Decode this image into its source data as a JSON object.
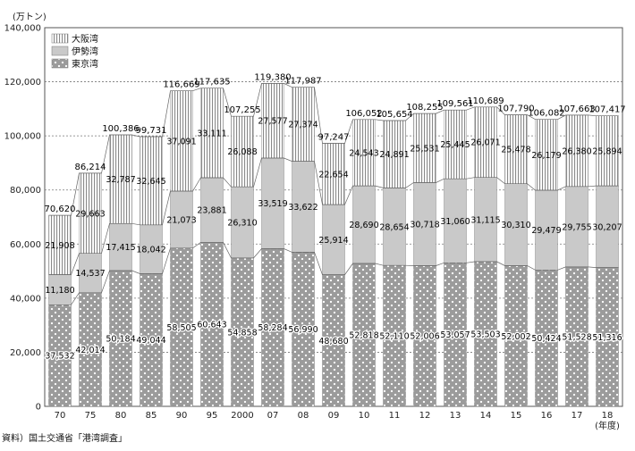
{
  "chart_data": {
    "type": "bar",
    "stacked": true,
    "unit_label": "(万トン)",
    "xlabel_suffix": "(年度)",
    "categories": [
      "70",
      "75",
      "80",
      "85",
      "90",
      "95",
      "2000",
      "07",
      "08",
      "09",
      "10",
      "11",
      "12",
      "13",
      "14",
      "15",
      "16",
      "17",
      "18"
    ],
    "series": [
      {
        "name": "東京湾",
        "values": [
          37532,
          42014,
          50184,
          49044,
          58505,
          60643,
          54858,
          58284,
          56990,
          48680,
          52818,
          52110,
          52006,
          53057,
          53503,
          52002,
          50424,
          51528,
          51316
        ]
      },
      {
        "name": "伊勢湾",
        "values": [
          11180,
          14537,
          17415,
          18042,
          21073,
          23881,
          26310,
          33519,
          33622,
          25914,
          28690,
          28654,
          30718,
          31060,
          31115,
          30310,
          29479,
          29755,
          30207
        ]
      },
      {
        "name": "大阪湾",
        "values": [
          21908,
          29663,
          32787,
          32645,
          37091,
          33111,
          26088,
          27577,
          27374,
          22654,
          24543,
          24891,
          25531,
          25445,
          26071,
          25478,
          26179,
          26380,
          25894
        ]
      }
    ],
    "totals": [
      70620,
      86214,
      100386,
      99731,
      116669,
      117635,
      107255,
      119380,
      117987,
      97247,
      106052,
      105654,
      108255,
      109561,
      110689,
      107790,
      106082,
      107663,
      107417
    ],
    "ylim": [
      0,
      140000
    ],
    "yticks": [
      0,
      20000,
      40000,
      60000,
      80000,
      100000,
      120000,
      140000
    ],
    "grid": "dashed horizontal",
    "legend_position": "top-left"
  },
  "source_note": "資料）国土交通省「港湾調査」"
}
